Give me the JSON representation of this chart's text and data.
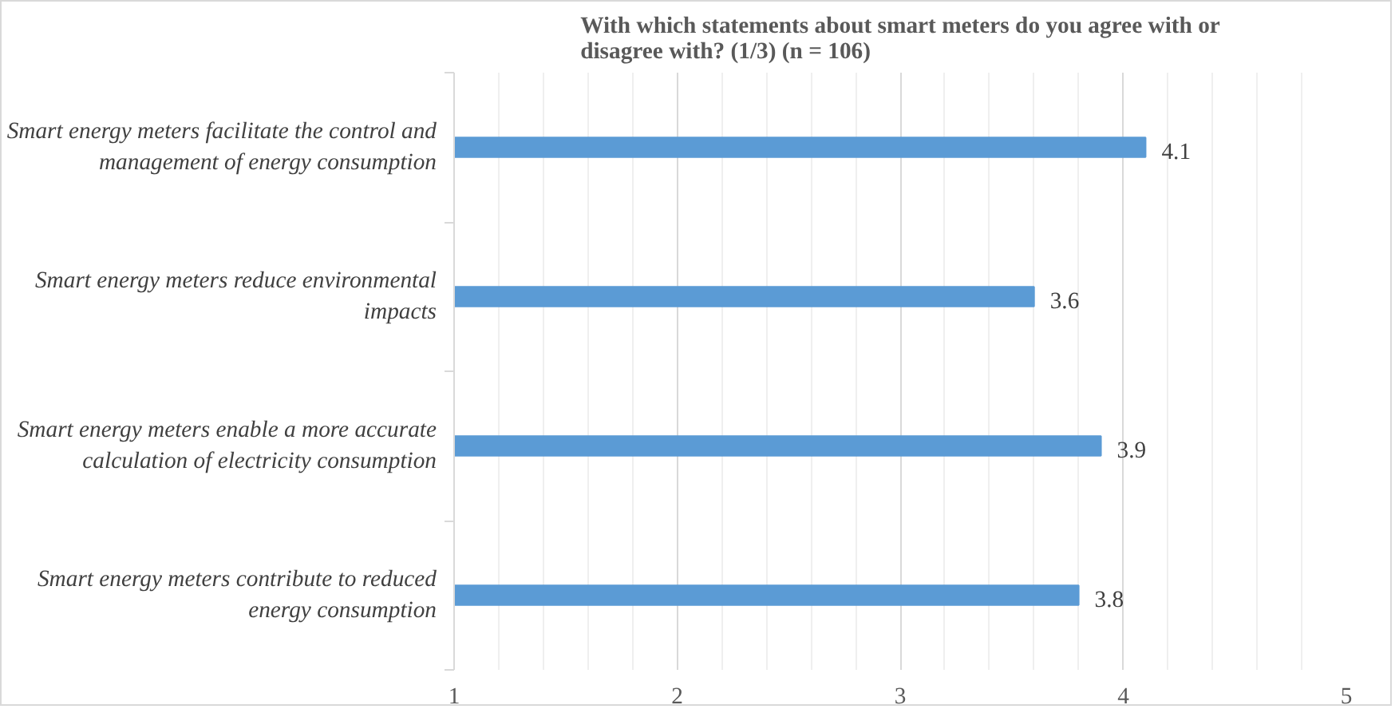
{
  "chart_data": {
    "type": "bar",
    "orientation": "horizontal",
    "title": "With which statements about smart meters do you agree with or disagree with? (1/3) (n = 106)",
    "categories": [
      "Smart energy meters facilitate the control and management of energy consumption",
      "Smart energy meters reduce environmental impacts",
      "Smart energy meters enable a more accurate calculation of electricity consumption",
      "Smart energy meters contribute to reduced energy consumption"
    ],
    "values": [
      4.1,
      3.6,
      3.9,
      3.8
    ],
    "color": "#5b9bd5",
    "xlim": [
      1,
      5
    ],
    "xticks": [
      1,
      2,
      3,
      4,
      5
    ],
    "grid": "x",
    "data_labels": true
  }
}
